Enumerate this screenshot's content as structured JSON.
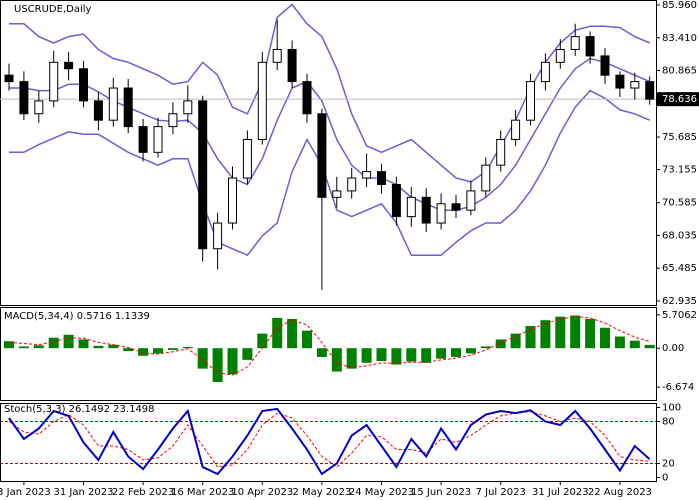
{
  "chart_data": [
    {
      "type": "candlestick",
      "title": "USCRUDE,Daily",
      "categories": [
        null,
        "3 Jan 2023",
        null,
        null,
        null,
        "31 Jan 2023",
        null,
        null,
        null,
        "22 Feb 2023",
        null,
        null,
        null,
        "16 Mar 2023",
        null,
        null,
        null,
        "10 Apr 2023",
        null,
        null,
        null,
        "2 May 2023",
        null,
        null,
        null,
        "24 May 2023",
        null,
        null,
        null,
        "15 Jun 2023",
        null,
        null,
        null,
        "7 Jul 2023",
        null,
        null,
        null,
        "31 Jul 2023",
        null,
        null,
        null,
        "22 Aug 2023",
        null,
        null
      ],
      "ohlc": {
        "color": "#000000",
        "open": [
          80.5,
          80.0,
          77.5,
          78.5,
          81.5,
          81.0,
          78.5,
          77.0,
          79.5,
          76.5,
          74.5,
          76.5,
          77.5,
          78.5,
          67.0,
          69.0,
          72.5,
          75.5,
          81.5,
          82.5,
          80.0,
          77.5,
          71.0,
          71.5,
          72.5,
          73.0,
          72.0,
          69.5,
          71.0,
          69.0,
          70.5,
          70.0,
          71.5,
          73.5,
          75.5,
          77.0,
          80.0,
          81.5,
          82.5,
          83.5,
          82.0,
          80.5,
          79.5,
          80.0
        ],
        "high": [
          81.4,
          80.8,
          79.3,
          82.4,
          82.3,
          81.6,
          79.2,
          80.3,
          80.2,
          77.1,
          77.2,
          78.4,
          79.7,
          78.9,
          69.8,
          73.4,
          76.2,
          82.3,
          84.8,
          83.2,
          80.6,
          77.9,
          72.6,
          73.3,
          74.4,
          73.6,
          72.6,
          71.8,
          71.7,
          71.3,
          71.2,
          72.3,
          74.1,
          76.2,
          77.8,
          80.6,
          82.2,
          83.3,
          84.5,
          83.9,
          82.6,
          80.8,
          80.7,
          80.4
        ],
        "low": [
          79.3,
          77.0,
          76.8,
          78.0,
          80.1,
          78.0,
          76.2,
          76.5,
          76.0,
          73.8,
          74.1,
          75.9,
          76.8,
          66.0,
          65.4,
          68.5,
          72.0,
          75.1,
          80.9,
          79.5,
          76.8,
          63.8,
          70.2,
          70.9,
          71.8,
          71.3,
          68.8,
          68.7,
          68.3,
          68.5,
          69.4,
          69.6,
          71.0,
          73.0,
          75.0,
          76.6,
          79.3,
          81.0,
          82.0,
          81.4,
          79.8,
          78.8,
          78.6,
          78.2
        ],
        "close": [
          80.0,
          77.5,
          78.5,
          81.5,
          81.0,
          78.5,
          77.0,
          79.5,
          76.5,
          74.5,
          76.5,
          77.5,
          78.5,
          67.0,
          69.0,
          72.5,
          75.5,
          81.5,
          82.5,
          80.0,
          77.5,
          71.0,
          71.5,
          72.5,
          73.0,
          72.0,
          69.5,
          71.0,
          69.0,
          70.5,
          70.0,
          71.5,
          73.5,
          75.5,
          77.0,
          80.0,
          81.5,
          82.5,
          83.5,
          82.0,
          80.5,
          79.5,
          80.0,
          78.636
        ]
      },
      "bands": {
        "color": "#6a5fd8",
        "upper": [
          84.5,
          84.5,
          83.5,
          83.0,
          83.5,
          83.7,
          82.5,
          81.8,
          81.5,
          81.0,
          80.5,
          79.8,
          80.0,
          81.5,
          80.5,
          78.0,
          77.5,
          80.0,
          85.0,
          86.0,
          84.5,
          83.5,
          81.0,
          77.5,
          75.0,
          74.5,
          75.0,
          75.5,
          74.5,
          73.5,
          72.5,
          72.2,
          73.0,
          75.0,
          77.0,
          79.5,
          81.5,
          83.0,
          84.0,
          84.3,
          84.3,
          84.2,
          83.5,
          83.0
        ],
        "middle": [
          79.5,
          79.5,
          79.3,
          79.3,
          79.8,
          79.8,
          79.2,
          78.5,
          78.0,
          77.5,
          77.0,
          76.9,
          77.0,
          76.0,
          74.0,
          72.5,
          72.0,
          74.0,
          77.0,
          79.5,
          80.0,
          78.5,
          75.5,
          73.5,
          72.5,
          72.5,
          72.0,
          71.0,
          70.5,
          70.0,
          70.0,
          70.3,
          71.0,
          72.0,
          73.5,
          75.5,
          77.5,
          79.5,
          81.0,
          81.8,
          81.5,
          81.0,
          80.5,
          80.0
        ],
        "lower": [
          74.5,
          74.5,
          75.1,
          75.6,
          76.1,
          75.9,
          75.9,
          75.2,
          74.5,
          74.0,
          73.5,
          74.0,
          74.0,
          70.5,
          67.5,
          67.0,
          66.5,
          68.0,
          69.0,
          73.0,
          75.5,
          73.5,
          70.0,
          69.5,
          70.0,
          70.5,
          69.0,
          66.5,
          66.5,
          66.5,
          67.5,
          68.4,
          69.0,
          69.0,
          70.0,
          71.5,
          73.5,
          76.0,
          78.0,
          79.3,
          78.7,
          77.8,
          77.5,
          77.0
        ]
      },
      "ylim": [
        62.625,
        86.27
      ],
      "yticks": [
        {
          "value": 85.96,
          "label": "85.960"
        },
        {
          "value": 83.41,
          "label": "83.410"
        },
        {
          "value": 80.865,
          "label": "80.865"
        },
        {
          "value": 75.685,
          "label": "75.685"
        },
        {
          "value": 73.155,
          "label": "73.155"
        },
        {
          "value": 70.585,
          "label": "70.585"
        },
        {
          "value": 68.035,
          "label": "68.035"
        },
        {
          "value": 65.485,
          "label": "65.485"
        },
        {
          "value": 62.935,
          "label": "62.935"
        }
      ]
    },
    {
      "type": "macd",
      "title": "MACD(5,34,4) 0.5716 1.1339",
      "histogram": {
        "color": "#008000",
        "values": [
          1.2,
          0.3,
          0.5,
          1.8,
          2.3,
          1.5,
          0.4,
          0.6,
          -0.5,
          -1.3,
          -0.9,
          -0.3,
          0.2,
          -3.5,
          -5.8,
          -4.5,
          -2.0,
          2.5,
          5.2,
          5.0,
          3.0,
          -1.5,
          -4.0,
          -3.5,
          -2.5,
          -2.2,
          -2.8,
          -2.3,
          -2.5,
          -1.8,
          -1.5,
          -0.9,
          0.3,
          1.5,
          2.5,
          3.8,
          4.8,
          5.4,
          5.6,
          5.0,
          3.5,
          2.0,
          1.3,
          0.57
        ]
      },
      "signal": {
        "color": "#ff0000",
        "values": [
          1.0,
          0.8,
          0.6,
          1.1,
          1.8,
          1.7,
          1.0,
          0.6,
          0.1,
          -0.8,
          -1.0,
          -0.6,
          -0.1,
          -2.0,
          -4.2,
          -4.6,
          -3.2,
          0.0,
          3.5,
          4.8,
          4.0,
          1.0,
          -2.5,
          -3.4,
          -3.0,
          -2.5,
          -2.6,
          -2.4,
          -2.4,
          -2.0,
          -1.7,
          -1.2,
          -0.3,
          0.9,
          2.0,
          3.2,
          4.2,
          5.0,
          5.4,
          5.2,
          4.3,
          3.0,
          1.9,
          1.13
        ]
      },
      "ylim": [
        -8.88,
        6.89
      ],
      "yticks": [
        5.7062,
        {
          "value": 0,
          "label": "0.00"
        },
        -6.674
      ]
    },
    {
      "type": "stoch",
      "title": "Stoch(5,3,3) 26.1492 23.1498",
      "k": {
        "color": "#0000cc",
        "values": [
          85,
          55,
          70,
          95,
          88,
          50,
          25,
          65,
          30,
          12,
          40,
          70,
          95,
          15,
          5,
          30,
          60,
          95,
          98,
          70,
          40,
          5,
          20,
          60,
          75,
          45,
          15,
          55,
          30,
          70,
          40,
          75,
          90,
          95,
          92,
          96,
          80,
          75,
          95,
          70,
          40,
          10,
          45,
          26.1
        ]
      },
      "d": {
        "color": "#ff0000",
        "values": [
          80,
          65,
          62,
          80,
          90,
          75,
          45,
          45,
          40,
          25,
          28,
          45,
          75,
          45,
          15,
          18,
          40,
          75,
          92,
          85,
          60,
          30,
          15,
          35,
          60,
          58,
          40,
          40,
          35,
          55,
          50,
          60,
          75,
          88,
          92,
          94,
          88,
          80,
          85,
          80,
          60,
          30,
          25,
          23.1
        ]
      },
      "levels": [
        80,
        20
      ],
      "ylim": [
        -5,
        105
      ],
      "yticks": [
        100,
        80,
        20,
        0
      ]
    }
  ]
}
